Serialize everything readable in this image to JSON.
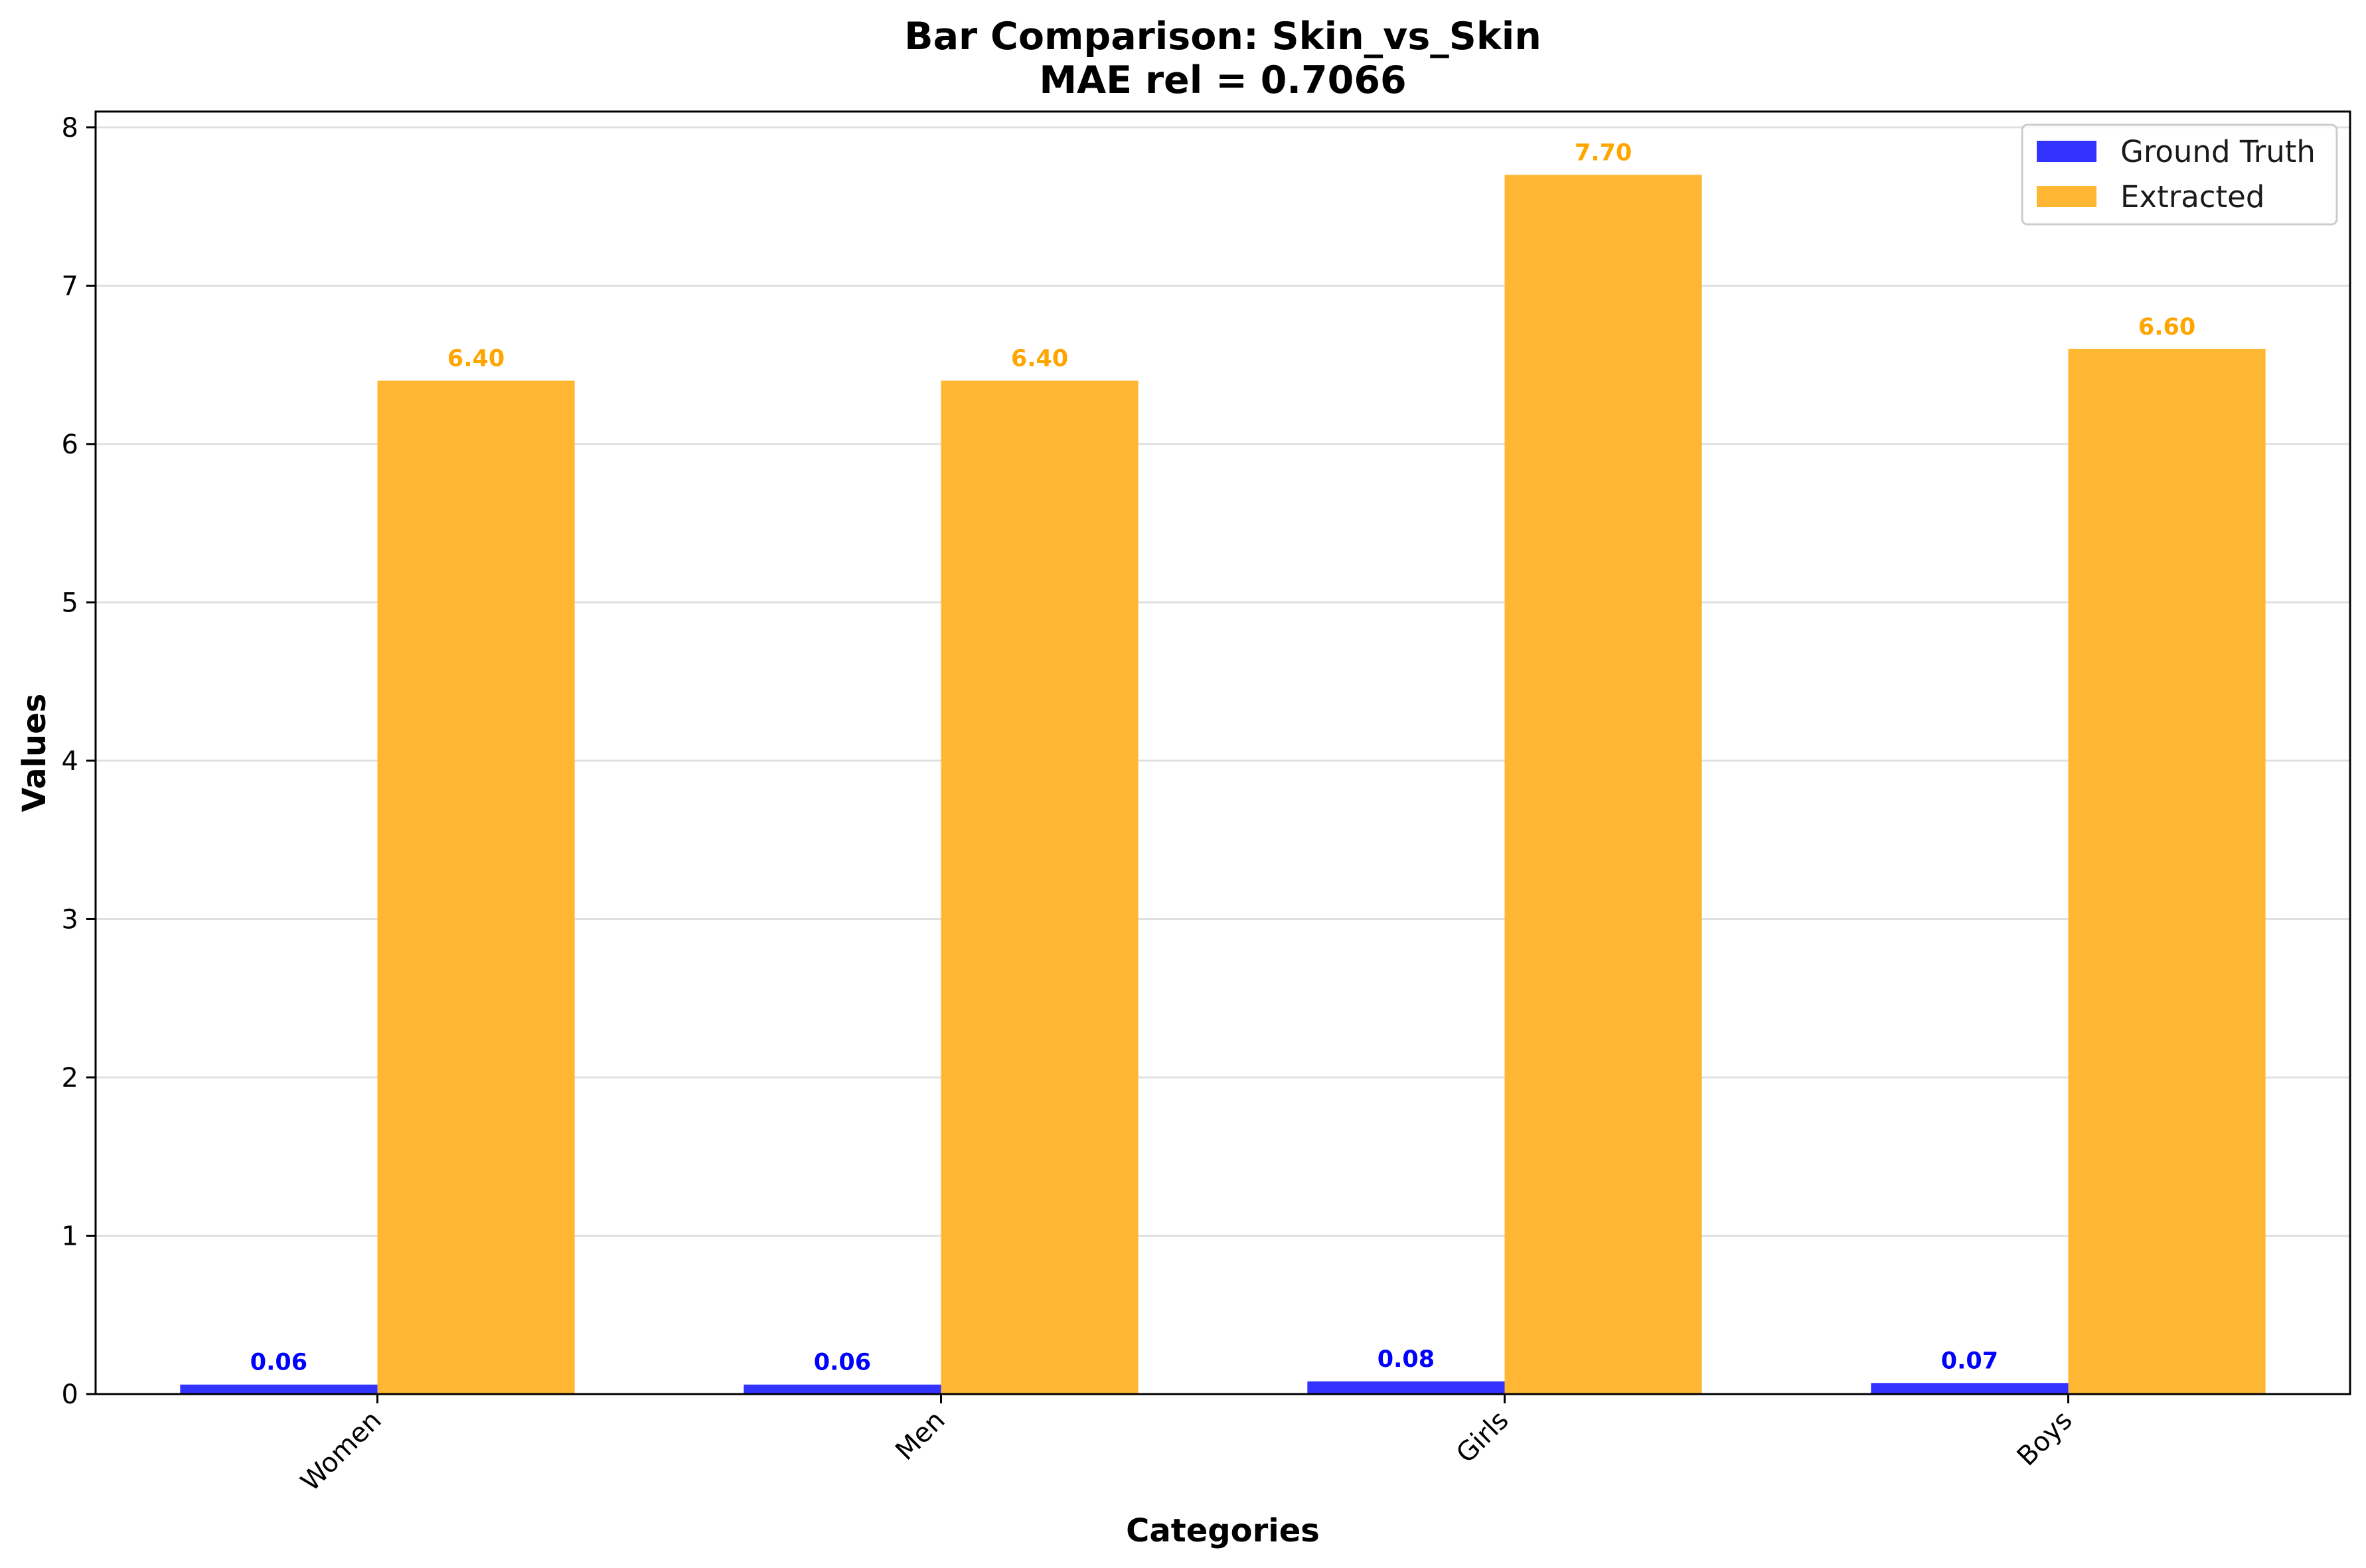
{
  "chart_data": {
    "type": "bar",
    "title": "Bar Comparison: Skin_vs_Skin",
    "subtitle": "MAE rel = 0.7066",
    "xlabel": "Categories",
    "ylabel": "Values",
    "categories": [
      "Women",
      "Men",
      "Girls",
      "Boys"
    ],
    "series": [
      {
        "name": "Ground Truth",
        "values": [
          0.06,
          0.06,
          0.08,
          0.07
        ],
        "labels": [
          "0.06",
          "0.06",
          "0.08",
          "0.07"
        ],
        "color": "#3333ff"
      },
      {
        "name": "Extracted",
        "values": [
          6.4,
          6.4,
          7.7,
          6.6
        ],
        "labels": [
          "6.40",
          "6.40",
          "7.70",
          "6.60"
        ],
        "color": "#ffb733"
      }
    ],
    "label_colors": [
      "#0000ff",
      "#ffa500"
    ],
    "ylim": [
      0,
      8.1
    ],
    "yticks": [
      0,
      1,
      2,
      3,
      4,
      5,
      6,
      7,
      8
    ],
    "ytick_labels": [
      "0",
      "1",
      "2",
      "3",
      "4",
      "5",
      "6",
      "7",
      "8"
    ],
    "grid": "horizontal",
    "legend_position": "top-right"
  }
}
